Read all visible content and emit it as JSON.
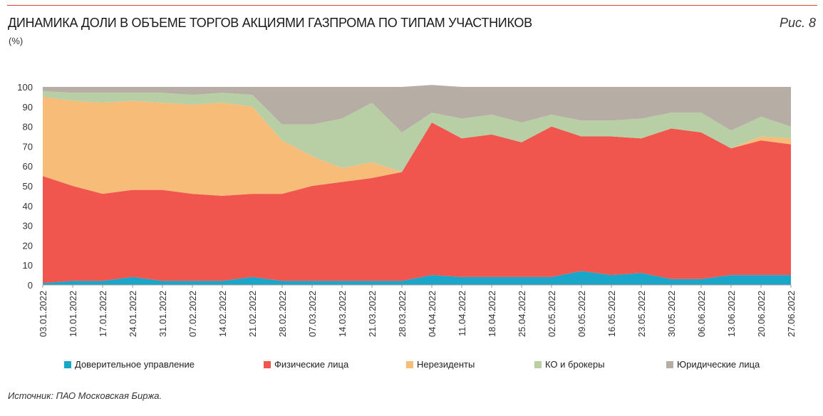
{
  "header": {
    "title": "ДИНАМИКА ДОЛИ В ОБЪЕМЕ ТОРГОВ АКЦИЯМИ ГАЗПРОМА ПО ТИПАМ УЧАСТНИКОВ",
    "unit": "(%)",
    "figure_label": "Рис. 8"
  },
  "footer": {
    "source": "Источник: ПАО Московская Биржа."
  },
  "chart_data": {
    "type": "area",
    "stacked": true,
    "ylim": [
      0,
      100
    ],
    "yticks": [
      0,
      10,
      20,
      30,
      40,
      50,
      60,
      70,
      80,
      90,
      100
    ],
    "grid": false,
    "legend_position": "bottom",
    "x": [
      "03.01.2022",
      "10.01.2022",
      "17.01.2022",
      "24.01.2022",
      "31.01.2022",
      "07.02.2022",
      "14.02.2022",
      "21.02.2022",
      "28.02.2022",
      "07.03.2022",
      "14.03.2022",
      "21.03.2022",
      "28.03.2022",
      "04.04.2022",
      "11.04.2022",
      "18.04.2022",
      "25.04.2022",
      "02.05.2022",
      "09.05.2022",
      "16.05.2022",
      "23.05.2022",
      "30.05.2022",
      "06.06.2022",
      "13.06.2022",
      "20.06.2022",
      "27.06.2022"
    ],
    "series": [
      {
        "name": "Доверительное управление",
        "color": "#1aa6c8",
        "values": [
          1,
          2,
          2,
          4,
          2,
          2,
          2,
          4,
          2,
          2,
          2,
          2,
          2,
          5,
          4,
          4,
          4,
          4,
          7,
          5,
          6,
          3,
          3,
          5,
          5,
          5
        ]
      },
      {
        "name": "Физические лица",
        "color": "#f0564e",
        "values": [
          54,
          48,
          44,
          44,
          46,
          44,
          43,
          42,
          44,
          48,
          50,
          52,
          55,
          77,
          70,
          72,
          68,
          76,
          68,
          70,
          68,
          76,
          74,
          64,
          68,
          66
        ]
      },
      {
        "name": "Нерезиденты",
        "color": "#f6bc78",
        "values": [
          40,
          43,
          46,
          45,
          44,
          45,
          47,
          44,
          27,
          15,
          7,
          8,
          0,
          0,
          0,
          0,
          0,
          0,
          0,
          0,
          0,
          0,
          0,
          0,
          2,
          3
        ]
      },
      {
        "name": "КО и брокеры",
        "color": "#b8cfa6",
        "values": [
          3,
          4,
          5,
          4,
          5,
          5,
          5,
          6,
          8,
          16,
          25,
          30,
          20,
          5,
          10,
          10,
          10,
          6,
          8,
          8,
          10,
          8,
          10,
          9,
          10,
          6
        ]
      },
      {
        "name": "Юридические лица",
        "color": "#b6ada4",
        "values": [
          2,
          3,
          3,
          3,
          3,
          4,
          3,
          4,
          19,
          19,
          16,
          8,
          23,
          14,
          16,
          14,
          18,
          14,
          17,
          17,
          16,
          13,
          13,
          22,
          15,
          20
        ]
      }
    ]
  }
}
